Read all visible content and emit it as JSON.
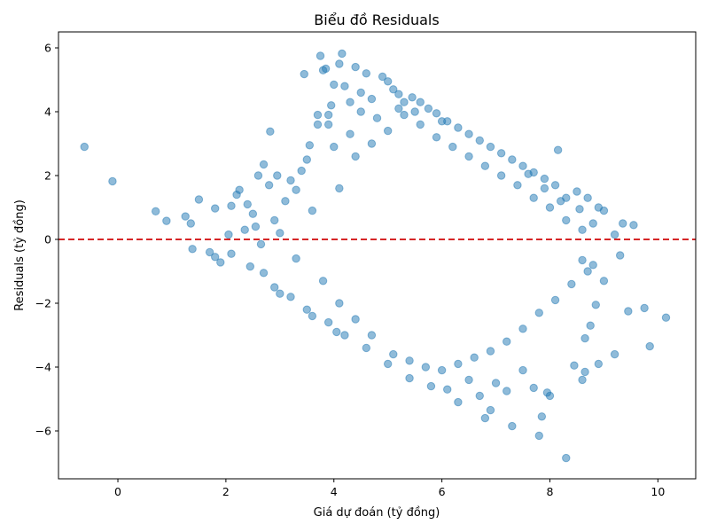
{
  "chart_data": {
    "type": "scatter",
    "title": "Biểu đồ Residuals",
    "xlabel": "Giá dự đoán (tỷ đồng)",
    "ylabel": "Residuals (tỷ đồng)",
    "xlim": [
      -1.1,
      10.7
    ],
    "ylim": [
      -7.5,
      6.5
    ],
    "xticks": [
      0,
      2,
      4,
      6,
      8,
      10
    ],
    "yticks": [
      -6,
      -4,
      -2,
      0,
      2,
      4,
      6
    ],
    "x_tick_labels": [
      "0",
      "2",
      "4",
      "6",
      "8",
      "10"
    ],
    "y_tick_labels": [
      "−6",
      "−4",
      "−2",
      "0",
      "2",
      "4",
      "6"
    ],
    "grid": false,
    "reference_line": {
      "y": 0,
      "color": "#d62728",
      "style": "dashed"
    },
    "point_color": "#1f77b4",
    "point_alpha": 0.5,
    "series": [
      {
        "values": [
          [
            -0.62,
            2.9
          ],
          [
            -0.1,
            1.82
          ],
          [
            0.7,
            0.88
          ],
          [
            0.9,
            0.58
          ],
          [
            1.25,
            0.72
          ],
          [
            1.35,
            0.5
          ],
          [
            1.38,
            -0.3
          ],
          [
            1.5,
            1.25
          ],
          [
            1.7,
            -0.4
          ],
          [
            1.8,
            -0.55
          ],
          [
            1.8,
            0.97
          ],
          [
            1.9,
            -0.72
          ],
          [
            2.05,
            0.15
          ],
          [
            2.1,
            1.05
          ],
          [
            2.1,
            -0.45
          ],
          [
            2.2,
            1.4
          ],
          [
            2.25,
            1.55
          ],
          [
            2.35,
            0.3
          ],
          [
            2.4,
            1.1
          ],
          [
            2.45,
            -0.85
          ],
          [
            2.5,
            0.8
          ],
          [
            2.6,
            2.0
          ],
          [
            2.7,
            2.35
          ],
          [
            2.7,
            -1.05
          ],
          [
            2.8,
            1.7
          ],
          [
            2.82,
            3.38
          ],
          [
            2.9,
            -1.5
          ],
          [
            2.95,
            2.0
          ],
          [
            3.0,
            -1.7
          ],
          [
            3.1,
            1.2
          ],
          [
            3.2,
            1.85
          ],
          [
            3.3,
            1.55
          ],
          [
            3.4,
            2.15
          ],
          [
            3.45,
            5.18
          ],
          [
            3.5,
            2.5
          ],
          [
            3.55,
            2.95
          ],
          [
            3.6,
            -2.4
          ],
          [
            3.7,
            3.6
          ],
          [
            3.75,
            5.75
          ],
          [
            3.8,
            5.3
          ],
          [
            3.85,
            5.35
          ],
          [
            3.9,
            3.9
          ],
          [
            3.95,
            4.2
          ],
          [
            4.0,
            4.85
          ],
          [
            4.05,
            -2.9
          ],
          [
            4.1,
            5.5
          ],
          [
            4.15,
            5.82
          ],
          [
            4.2,
            4.8
          ],
          [
            4.3,
            3.3
          ],
          [
            4.4,
            5.4
          ],
          [
            4.5,
            4.6
          ],
          [
            4.6,
            5.2
          ],
          [
            4.7,
            4.4
          ],
          [
            4.8,
            3.8
          ],
          [
            4.9,
            5.1
          ],
          [
            5.0,
            4.95
          ],
          [
            5.1,
            4.7
          ],
          [
            5.2,
            4.55
          ],
          [
            5.3,
            4.3
          ],
          [
            5.45,
            4.45
          ],
          [
            5.6,
            4.3
          ],
          [
            5.75,
            4.1
          ],
          [
            5.9,
            3.95
          ],
          [
            6.1,
            3.7
          ],
          [
            6.3,
            3.5
          ],
          [
            6.5,
            3.3
          ],
          [
            6.7,
            3.1
          ],
          [
            6.9,
            2.9
          ],
          [
            7.1,
            2.7
          ],
          [
            7.3,
            2.5
          ],
          [
            7.5,
            2.3
          ],
          [
            7.7,
            2.1
          ],
          [
            7.9,
            1.9
          ],
          [
            8.1,
            1.7
          ],
          [
            8.15,
            2.8
          ],
          [
            8.3,
            1.3
          ],
          [
            8.5,
            1.5
          ],
          [
            8.7,
            1.3
          ],
          [
            8.9,
            1.0
          ],
          [
            9.0,
            0.9
          ],
          [
            9.2,
            0.15
          ],
          [
            9.35,
            0.5
          ],
          [
            9.55,
            0.45
          ],
          [
            9.3,
            -0.5
          ],
          [
            9.45,
            -2.25
          ],
          [
            9.75,
            -2.15
          ],
          [
            9.85,
            -3.35
          ],
          [
            10.15,
            -2.45
          ],
          [
            9.2,
            -3.6
          ],
          [
            8.9,
            -3.9
          ],
          [
            8.65,
            -4.15
          ],
          [
            8.6,
            -4.4
          ],
          [
            8.3,
            -6.85
          ],
          [
            7.8,
            -6.15
          ],
          [
            7.3,
            -5.85
          ],
          [
            7.85,
            -5.55
          ],
          [
            6.8,
            -5.6
          ],
          [
            6.9,
            -5.35
          ],
          [
            6.3,
            -5.1
          ],
          [
            5.8,
            -4.6
          ],
          [
            5.4,
            -4.35
          ],
          [
            5.0,
            -3.9
          ],
          [
            4.6,
            -3.4
          ],
          [
            4.2,
            -3.0
          ],
          [
            3.9,
            -2.6
          ],
          [
            3.5,
            -2.2
          ],
          [
            3.2,
            -1.8
          ],
          [
            8.0,
            -4.9
          ],
          [
            8.45,
            -3.95
          ],
          [
            8.65,
            -3.1
          ],
          [
            8.75,
            -2.7
          ],
          [
            8.85,
            -2.05
          ],
          [
            8.6,
            -0.65
          ],
          [
            8.8,
            -0.8
          ],
          [
            9.0,
            -1.3
          ],
          [
            7.5,
            -4.1
          ],
          [
            7.7,
            -4.65
          ],
          [
            7.95,
            -4.8
          ],
          [
            7.2,
            -4.75
          ],
          [
            6.7,
            -4.9
          ],
          [
            7.0,
            -4.5
          ],
          [
            6.1,
            -4.7
          ],
          [
            6.5,
            -4.4
          ],
          [
            2.55,
            0.4
          ],
          [
            2.65,
            -0.15
          ],
          [
            2.9,
            0.6
          ],
          [
            3.0,
            0.2
          ],
          [
            3.3,
            -0.6
          ],
          [
            3.6,
            0.9
          ],
          [
            3.8,
            -1.3
          ],
          [
            4.1,
            1.6
          ],
          [
            4.1,
            -2.0
          ],
          [
            4.4,
            2.6
          ],
          [
            4.4,
            -2.5
          ],
          [
            4.7,
            3.0
          ],
          [
            4.7,
            -3.0
          ],
          [
            5.0,
            3.4
          ],
          [
            5.1,
            -3.6
          ],
          [
            5.3,
            3.9
          ],
          [
            5.4,
            -3.8
          ],
          [
            5.6,
            3.6
          ],
          [
            5.7,
            -4.0
          ],
          [
            5.9,
            3.2
          ],
          [
            6.0,
            -4.1
          ],
          [
            6.2,
            2.9
          ],
          [
            6.3,
            -3.9
          ],
          [
            6.5,
            2.6
          ],
          [
            6.6,
            -3.7
          ],
          [
            6.8,
            2.3
          ],
          [
            6.9,
            -3.5
          ],
          [
            7.1,
            2.0
          ],
          [
            7.2,
            -3.2
          ],
          [
            7.4,
            1.7
          ],
          [
            7.5,
            -2.8
          ],
          [
            7.7,
            1.3
          ],
          [
            7.8,
            -2.3
          ],
          [
            8.0,
            1.0
          ],
          [
            8.1,
            -1.9
          ],
          [
            8.3,
            0.6
          ],
          [
            8.4,
            -1.4
          ],
          [
            8.6,
            0.3
          ],
          [
            8.7,
            -1.0
          ],
          [
            3.7,
            3.9
          ],
          [
            3.9,
            3.6
          ],
          [
            4.0,
            2.9
          ],
          [
            4.3,
            4.3
          ],
          [
            4.5,
            4.0
          ],
          [
            5.2,
            4.1
          ],
          [
            5.5,
            4.0
          ],
          [
            6.0,
            3.7
          ],
          [
            7.6,
            2.05
          ],
          [
            7.9,
            1.6
          ],
          [
            8.2,
            1.2
          ],
          [
            8.55,
            0.95
          ],
          [
            8.8,
            0.5
          ]
        ]
      }
    ]
  }
}
